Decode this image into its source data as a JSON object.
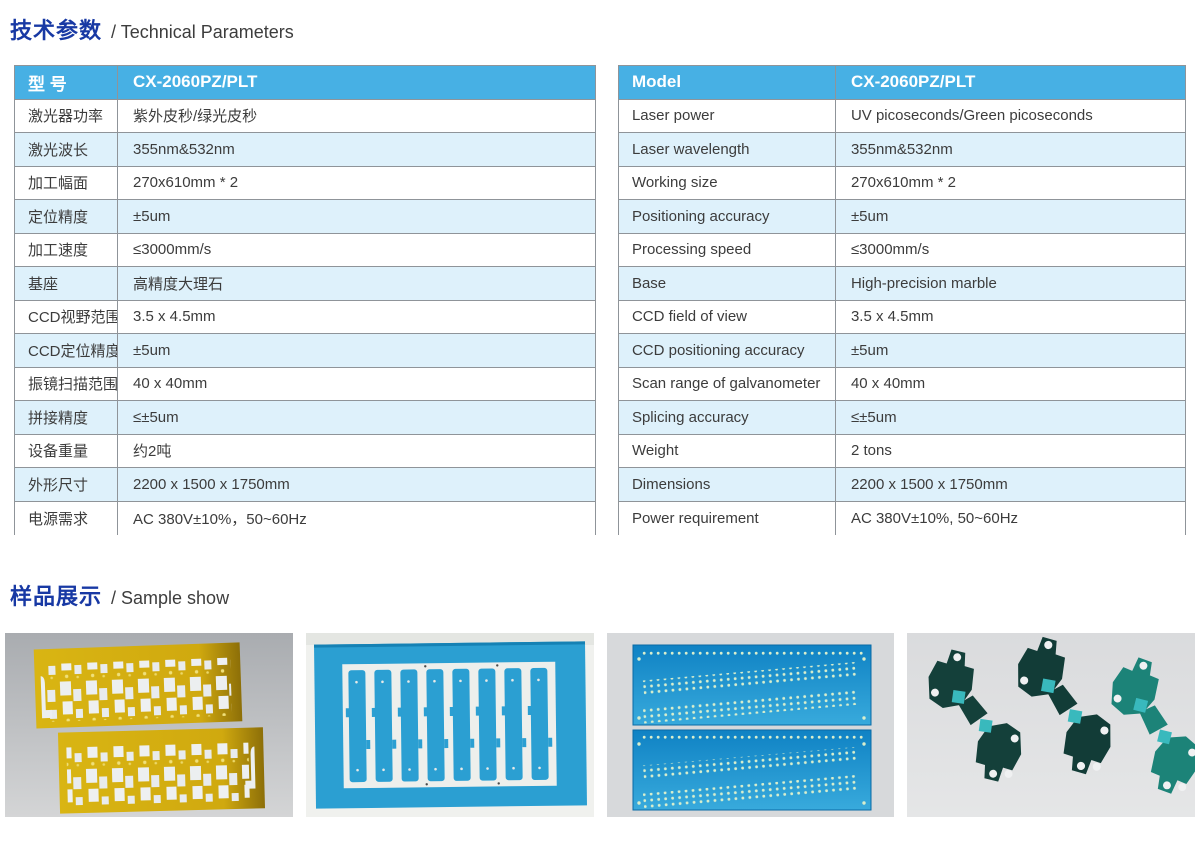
{
  "colors": {
    "title_blue": "#1839a4",
    "header_blue": "#47b0e4",
    "row_light_blue": "#def1fb",
    "border_gray": "#8f9499",
    "text_gray": "#3c3c3c"
  },
  "headings": {
    "tech": {
      "zh": "技术参数",
      "en": "/ Technical Parameters"
    },
    "sample": {
      "zh": "样品展示",
      "en": "/ Sample show"
    }
  },
  "tables": {
    "zh": {
      "header": {
        "label": "型 号",
        "value": "CX-2060PZ/PLT"
      },
      "rows": [
        {
          "label": "激光器功率",
          "value": "紫外皮秒/绿光皮秒"
        },
        {
          "label": "激光波长",
          "value": "355nm&532nm"
        },
        {
          "label": "加工幅面",
          "value": "270x610mm * 2"
        },
        {
          "label": "定位精度",
          "value": "±5um"
        },
        {
          "label": "加工速度",
          "value": "≤3000mm/s"
        },
        {
          "label": "基座",
          "value": "高精度大理石"
        },
        {
          "label": "CCD视野范围",
          "value": "3.5 x 4.5mm"
        },
        {
          "label": "CCD定位精度",
          "value": "±5um"
        },
        {
          "label": "振镜扫描范围",
          "value": "40 x 40mm"
        },
        {
          "label": "拼接精度",
          "value": "≤±5um"
        },
        {
          "label": "设备重量",
          "value": "约2吨"
        },
        {
          "label": "外形尺寸",
          "value": "2200 x 1500 x 1750mm"
        },
        {
          "label": "电源需求",
          "value": "AC 380V±10%，50~60Hz"
        }
      ]
    },
    "en": {
      "header": {
        "label": "Model",
        "value": "CX-2060PZ/PLT"
      },
      "rows": [
        {
          "label": "Laser power",
          "value": "UV picoseconds/Green picoseconds"
        },
        {
          "label": "Laser wavelength",
          "value": "355nm&532nm"
        },
        {
          "label": "Working size",
          "value": "270x610mm * 2"
        },
        {
          "label": "Positioning accuracy",
          "value": "±5um"
        },
        {
          "label": "Processing speed",
          "value": "≤3000mm/s"
        },
        {
          "label": "Base",
          "value": "High-precision marble"
        },
        {
          "label": "CCD field of view",
          "value": "3.5 x 4.5mm"
        },
        {
          "label": "CCD positioning accuracy",
          "value": "±5um"
        },
        {
          "label": "Scan range of galvanometer",
          "value": "40 x 40mm"
        },
        {
          "label": "Splicing accuracy",
          "value": "≤±5um"
        },
        {
          "label": "Weight",
          "value": "2 tons"
        },
        {
          "label": "Dimensions",
          "value": "2200 x 1500 x 1750mm"
        },
        {
          "label": "Power requirement",
          "value": "AC 380V±10%, 50~60Hz"
        }
      ]
    }
  },
  "samples": [
    {
      "name": "yellow-flex-pcb-strips-photo"
    },
    {
      "name": "blue-panel-cutouts-photo"
    },
    {
      "name": "blue-drilled-panels-photo"
    },
    {
      "name": "dark-teal-pcb-shapes-photo"
    }
  ]
}
